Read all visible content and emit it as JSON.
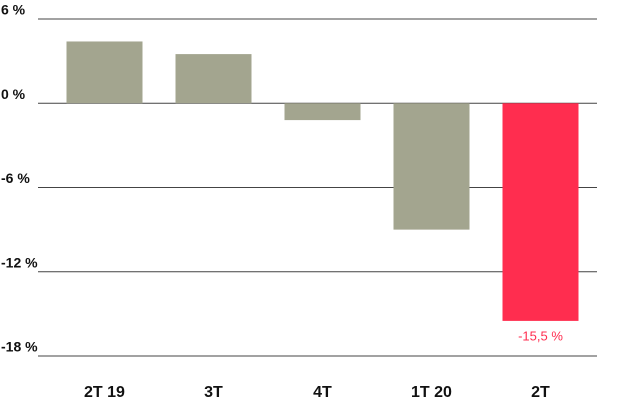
{
  "chart_data": {
    "type": "bar",
    "categories": [
      "2T 19",
      "3T",
      "4T",
      "1T 20",
      "2T"
    ],
    "values": [
      4.4,
      3.5,
      -1.2,
      -9.0,
      -15.5
    ],
    "value_labels": [
      null,
      null,
      null,
      null,
      "-15,5 %"
    ],
    "colors": [
      "#a3a58f",
      "#a3a58f",
      "#a3a58f",
      "#a3a58f",
      "#ff2d4f"
    ],
    "ylim": [
      -18,
      6
    ],
    "yticks": [
      {
        "value": -18,
        "label": "-18 %"
      },
      {
        "value": -12,
        "label": "-12 %"
      },
      {
        "value": -6,
        "label": "-6 %"
      },
      {
        "value": 0,
        "label": "0 %"
      },
      {
        "value": 6,
        "label": "6 %"
      }
    ],
    "grid": true
  }
}
